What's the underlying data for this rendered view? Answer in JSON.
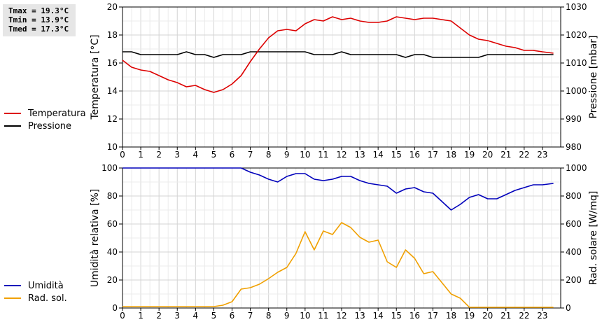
{
  "stats": {
    "tmax": "Tmax = 19.3°C",
    "tmin": "Tmin = 13.9°C",
    "tmed": "Tmed = 17.3°C"
  },
  "legend_top": [
    {
      "label": "Temperatura",
      "color": "#dd0000"
    },
    {
      "label": "Pressione",
      "color": "#000000"
    }
  ],
  "legend_bottom": [
    {
      "label": "Umidità",
      "color": "#0000bb"
    },
    {
      "label": "Rad. sol.",
      "color": "#f0a000"
    }
  ],
  "chart_data": [
    {
      "type": "line",
      "x_ticks": [
        0,
        1,
        2,
        3,
        4,
        5,
        6,
        7,
        8,
        9,
        10,
        11,
        12,
        13,
        14,
        15,
        16,
        17,
        18,
        19,
        20,
        21,
        22,
        23
      ],
      "xlim": [
        0,
        24
      ],
      "ylabel_left": "Temperatura [°C]",
      "ylabel_right": "Pressione [mbar]",
      "ylim_left": [
        10,
        20
      ],
      "ylim_right": [
        980,
        1030
      ],
      "yticks_left": [
        10,
        12,
        14,
        16,
        18,
        20
      ],
      "yticks_right": [
        980,
        990,
        1000,
        1010,
        1020,
        1030
      ],
      "grid": true,
      "series": [
        {
          "name": "Temperatura",
          "axis": "left",
          "color": "#dd0000",
          "x": [
            0,
            0.5,
            1,
            1.5,
            2,
            2.5,
            3,
            3.5,
            4,
            4.5,
            5,
            5.5,
            6,
            6.5,
            7,
            7.5,
            8,
            8.5,
            9,
            9.5,
            10,
            10.5,
            11,
            11.5,
            12,
            12.5,
            13,
            13.5,
            14,
            14.5,
            15,
            15.5,
            16,
            16.5,
            17,
            17.5,
            18,
            18.5,
            19,
            19.5,
            20,
            20.5,
            21,
            21.5,
            22,
            22.5,
            23,
            23.6
          ],
          "y": [
            16.2,
            15.7,
            15.5,
            15.4,
            15.1,
            14.8,
            14.6,
            14.3,
            14.4,
            14.1,
            13.9,
            14.1,
            14.5,
            15.1,
            16.1,
            17.0,
            17.8,
            18.3,
            18.4,
            18.3,
            18.8,
            19.1,
            19.0,
            19.3,
            19.1,
            19.2,
            19.0,
            18.9,
            18.9,
            19.0,
            19.3,
            19.2,
            19.1,
            19.2,
            19.2,
            19.1,
            19.0,
            18.5,
            18.0,
            17.7,
            17.6,
            17.4,
            17.2,
            17.1,
            16.9,
            16.9,
            16.8,
            16.7
          ]
        },
        {
          "name": "Pressione",
          "axis": "right",
          "color": "#000000",
          "x": [
            0,
            0.5,
            1,
            1.5,
            2,
            2.5,
            3,
            3.5,
            4,
            4.5,
            5,
            5.5,
            6,
            6.5,
            7,
            7.5,
            8,
            8.5,
            9,
            9.5,
            10,
            10.5,
            11,
            11.5,
            12,
            12.5,
            13,
            13.5,
            14,
            14.5,
            15,
            15.5,
            16,
            16.5,
            17,
            17.5,
            18,
            18.5,
            19,
            19.5,
            20,
            20.5,
            21,
            21.5,
            22,
            22.5,
            23,
            23.6
          ],
          "y": [
            1014,
            1014,
            1013,
            1013,
            1013,
            1013,
            1013,
            1014,
            1013,
            1013,
            1012,
            1013,
            1013,
            1013,
            1014,
            1014,
            1014,
            1014,
            1014,
            1014,
            1014,
            1013,
            1013,
            1013,
            1014,
            1013,
            1013,
            1013,
            1013,
            1013,
            1013,
            1012,
            1013,
            1013,
            1012,
            1012,
            1012,
            1012,
            1012,
            1012,
            1013,
            1013,
            1013,
            1013,
            1013,
            1013,
            1013,
            1013
          ]
        }
      ]
    },
    {
      "type": "line",
      "x_ticks": [
        0,
        1,
        2,
        3,
        4,
        5,
        6,
        7,
        8,
        9,
        10,
        11,
        12,
        13,
        14,
        15,
        16,
        17,
        18,
        19,
        20,
        21,
        22,
        23
      ],
      "xlim": [
        0,
        24
      ],
      "ylabel_left": "Umidità relativa [%]",
      "ylabel_right": "Rad. solare [W/mq]",
      "ylim_left": [
        0,
        100
      ],
      "ylim_right": [
        0,
        1000
      ],
      "yticks_left": [
        0,
        20,
        40,
        60,
        80,
        100
      ],
      "yticks_right": [
        0,
        200,
        400,
        600,
        800,
        1000
      ],
      "grid": true,
      "series": [
        {
          "name": "Umidità",
          "axis": "left",
          "color": "#0000bb",
          "x": [
            0,
            0.5,
            1,
            1.5,
            2,
            2.5,
            3,
            3.5,
            4,
            4.5,
            5,
            5.5,
            6,
            6.5,
            7,
            7.5,
            8,
            8.5,
            9,
            9.5,
            10,
            10.5,
            11,
            11.5,
            12,
            12.5,
            13,
            13.5,
            14,
            14.5,
            15,
            15.5,
            16,
            16.5,
            17,
            17.5,
            18,
            18.5,
            19,
            19.5,
            20,
            20.5,
            21,
            21.5,
            22,
            22.5,
            23,
            23.6
          ],
          "y": [
            100,
            100,
            100,
            100,
            100,
            100,
            100,
            100,
            100,
            100,
            100,
            100,
            100,
            100,
            97,
            95,
            92,
            90,
            94,
            96,
            96,
            92,
            91,
            92,
            94,
            94,
            91,
            89,
            88,
            87,
            82,
            85,
            86,
            83,
            82,
            76,
            70,
            74,
            79,
            81,
            78,
            78,
            81,
            84,
            86,
            88,
            88,
            89
          ]
        },
        {
          "name": "Rad. sol.",
          "axis": "right",
          "color": "#f0a000",
          "x": [
            0,
            0.5,
            1,
            1.5,
            2,
            2.5,
            3,
            3.5,
            4,
            4.5,
            5,
            5.5,
            6,
            6.5,
            7,
            7.5,
            8,
            8.5,
            9,
            9.5,
            10,
            10.5,
            11,
            11.5,
            12,
            12.5,
            13,
            13.5,
            14,
            14.5,
            15,
            15.5,
            16,
            16.5,
            17,
            17.5,
            18,
            18.5,
            19,
            19.5,
            20,
            20.5,
            21,
            21.5,
            22,
            22.5,
            23,
            23.6
          ],
          "y": [
            10,
            10,
            10,
            10,
            10,
            10,
            10,
            10,
            10,
            10,
            10,
            20,
            45,
            135,
            145,
            170,
            210,
            255,
            290,
            390,
            545,
            415,
            550,
            525,
            610,
            575,
            505,
            470,
            485,
            330,
            290,
            415,
            355,
            245,
            260,
            180,
            100,
            70,
            5,
            5,
            5,
            5,
            5,
            5,
            5,
            5,
            5,
            5
          ]
        }
      ]
    }
  ]
}
